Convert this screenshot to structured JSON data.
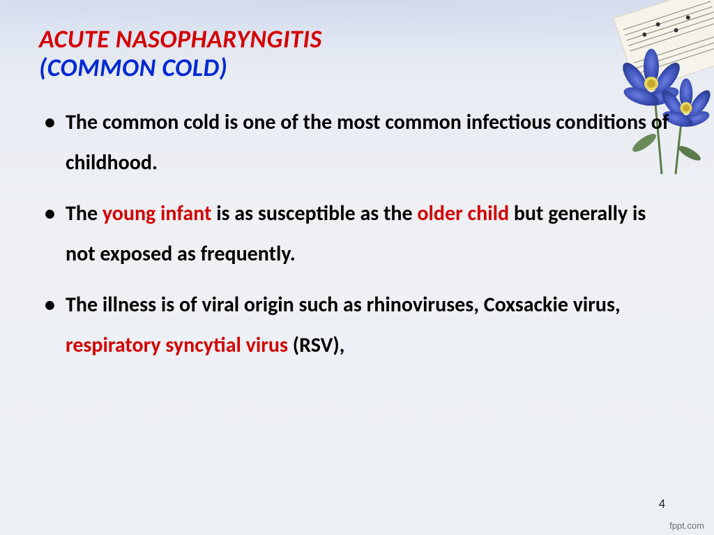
{
  "slide": {
    "title_main": "ACUTE NASOPHARYNGITIS",
    "title_sub": "(COMMON COLD)",
    "title_main_color": "#d40000",
    "title_sub_color": "#0028d4",
    "title_fontsize": 36,
    "title_style": "bold italic",
    "bullets": [
      {
        "segments": [
          {
            "text": "The common cold is one of the most common infectious conditions of childhood.",
            "highlight": false
          }
        ]
      },
      {
        "segments": [
          {
            "text": "The ",
            "highlight": false
          },
          {
            "text": "young infant",
            "highlight": true
          },
          {
            "text": " is as susceptible as the ",
            "highlight": false
          },
          {
            "text": "older child",
            "highlight": true
          },
          {
            "text": " but generally is not exposed as frequently.",
            "highlight": false
          }
        ]
      },
      {
        "segments": [
          {
            "text": "The illness is of viral origin such as rhinoviruses, Coxsackie virus, ",
            "highlight": false
          },
          {
            "text": "respiratory syncytial virus",
            "highlight": true
          },
          {
            "text": " (RSV),",
            "highlight": false
          }
        ]
      }
    ],
    "bullet_fontsize": 30,
    "bullet_color": "#000000",
    "highlight_color": "#d40000",
    "line_height": 1.95,
    "page_number": "4",
    "watermark": "fppt.com",
    "background_gradient": [
      "#d8e0f0",
      "#e8ecf3",
      "#eef0f4",
      "#eceff3"
    ],
    "decoration": {
      "type": "floral-corner",
      "flower_color": "#4a5fc7",
      "flower_center_color": "#e8d860",
      "leaf_color": "#6a8a5a",
      "sheet_music_bg": "#f5f3ea",
      "sheet_line_color": "#888070"
    }
  }
}
